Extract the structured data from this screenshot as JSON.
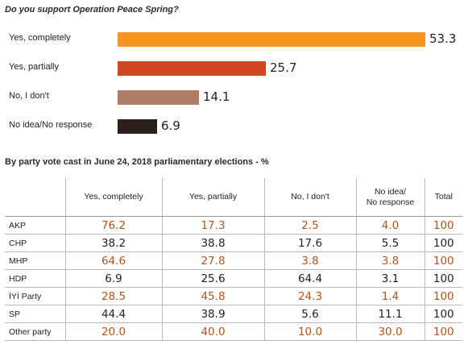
{
  "chart_data": [
    {
      "type": "bar",
      "orientation": "horizontal",
      "title": "Do you support Operation Peace Spring?",
      "categories": [
        "Yes, completely",
        "Yes, partially",
        "No, I don't",
        "No idea/No response"
      ],
      "values": [
        53.3,
        25.7,
        14.1,
        6.9
      ],
      "value_labels": [
        "53.3",
        "25.7",
        "14.1",
        "6.9"
      ],
      "colors": [
        "#f7941e",
        "#d2461f",
        "#b07c64",
        "#2a1f1b"
      ],
      "xlim": [
        0,
        53.3
      ],
      "grid": false
    },
    {
      "type": "table",
      "title": "By party vote cast in June 24, 2018 parliamentary elections - %",
      "columns": [
        "",
        "Yes, completely",
        "Yes, partially",
        "No, I don't",
        "No idea/\nNo response",
        "Total"
      ],
      "rows": [
        {
          "party": "AKP",
          "values": [
            "76.2",
            "17.3",
            "2.5",
            "4.0",
            "100"
          ]
        },
        {
          "party": "CHP",
          "values": [
            "38.2",
            "38.8",
            "17.6",
            "5.5",
            "100"
          ]
        },
        {
          "party": "MHP",
          "values": [
            "64.6",
            "27.8",
            "3.8",
            "3.8",
            "100"
          ]
        },
        {
          "party": "HDP",
          "values": [
            "6.9",
            "25.6",
            "64.4",
            "3.1",
            "100"
          ]
        },
        {
          "party": "İYİ Party",
          "values": [
            "28.5",
            "45.8",
            "24.3",
            "1.4",
            "100"
          ]
        },
        {
          "party": "SP",
          "values": [
            "44.4",
            "38.9",
            "5.6",
            "11.1",
            "100"
          ]
        },
        {
          "party": "Other party",
          "values": [
            "20.0",
            "40.0",
            "10.0",
            "30.0",
            "100"
          ]
        }
      ],
      "row_value_colors": [
        "#b3541d",
        "#1f1f1f",
        "#b3541d",
        "#1f1f1f",
        "#b3541d",
        "#1f1f1f",
        "#b3541d"
      ]
    }
  ]
}
